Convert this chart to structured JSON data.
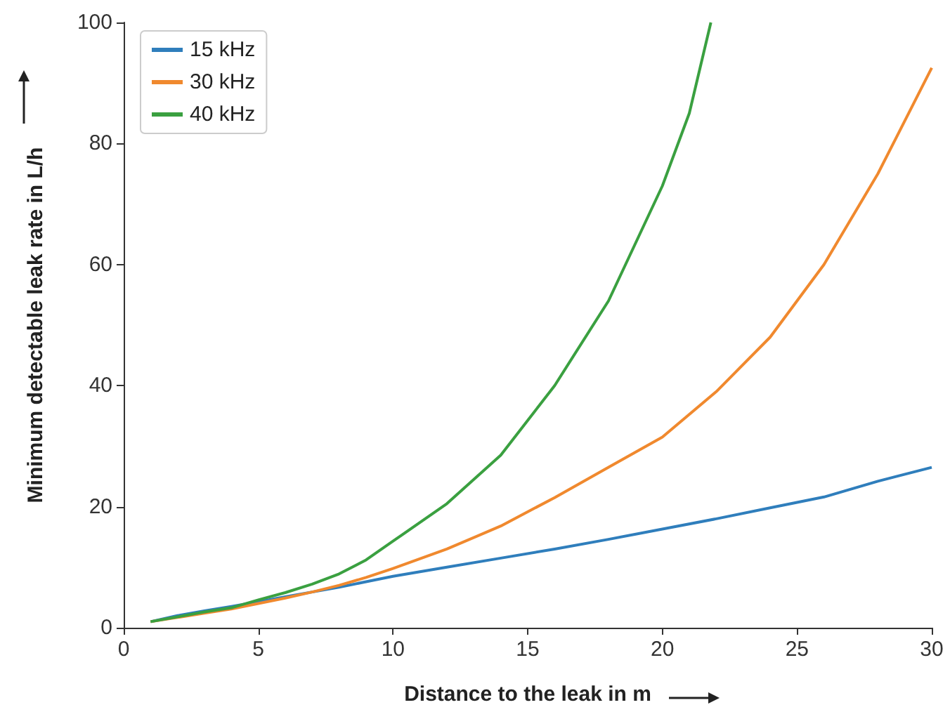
{
  "chart_data": {
    "type": "line",
    "xlabel": "Distance to the leak in m",
    "ylabel": "Minimum detectable leak rate in L/h",
    "x": [
      1,
      2,
      3,
      4,
      5,
      6,
      7,
      8,
      9,
      10,
      12,
      14,
      16,
      18,
      20,
      22,
      24,
      26,
      28,
      30
    ],
    "series": [
      {
        "name": "15 kHz",
        "color": "#2f7ebc",
        "values": [
          1,
          2,
          2.8,
          3.5,
          4.3,
          5.1,
          5.9,
          6.7,
          7.6,
          8.5,
          10,
          11.5,
          13,
          14.6,
          16.3,
          18,
          19.8,
          21.6,
          24.2,
          26.5
        ]
      },
      {
        "name": "30 kHz",
        "color": "#f0892e",
        "values": [
          1,
          1.7,
          2.4,
          3.1,
          4.0,
          4.9,
          5.9,
          7.0,
          8.3,
          9.8,
          13,
          16.8,
          21.5,
          26.5,
          31.5,
          39,
          48,
          60,
          75,
          92.5
        ]
      },
      {
        "name": "40 kHz",
        "color": "#3aa040",
        "x": [
          1,
          2,
          3,
          4,
          5,
          6,
          7,
          8,
          9,
          10,
          12,
          14,
          16,
          18,
          20,
          21,
          21.8
        ],
        "values": [
          1,
          1.8,
          2.6,
          3.3,
          4.6,
          5.8,
          7.2,
          8.9,
          11.2,
          14.3,
          20.5,
          28.5,
          40,
          54,
          73,
          85,
          100
        ]
      }
    ],
    "xlim": [
      0,
      30
    ],
    "xticks": [
      0,
      5,
      10,
      15,
      20,
      25,
      30
    ],
    "ylim": [
      0,
      100
    ],
    "yticks": [
      0,
      20,
      40,
      60,
      80,
      100
    ],
    "grid": false,
    "legend": "top left",
    "marker": "none",
    "line_style": "solid"
  }
}
